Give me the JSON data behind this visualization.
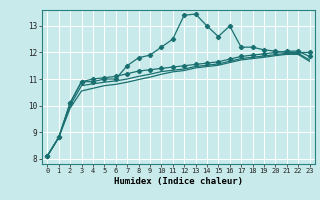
{
  "xlabel": "Humidex (Indice chaleur)",
  "ylabel": "",
  "bg_color": "#c8eaea",
  "grid_color": "#ffffff",
  "line_color": "#1a7070",
  "xlim": [
    -0.5,
    23.5
  ],
  "ylim": [
    7.8,
    13.6
  ],
  "yticks": [
    8,
    9,
    10,
    11,
    12,
    13
  ],
  "xticks": [
    0,
    1,
    2,
    3,
    4,
    5,
    6,
    7,
    8,
    9,
    10,
    11,
    12,
    13,
    14,
    15,
    16,
    17,
    18,
    19,
    20,
    21,
    22,
    23
  ],
  "series1_x": [
    0,
    1,
    2,
    3,
    4,
    5,
    6,
    7,
    8,
    9,
    10,
    11,
    12,
    13,
    14,
    15,
    16,
    17,
    18,
    19,
    20,
    21,
    22,
    23
  ],
  "series1_y": [
    8.1,
    8.8,
    10.1,
    10.9,
    10.9,
    11.0,
    11.0,
    11.5,
    11.8,
    11.9,
    12.2,
    12.5,
    13.4,
    13.45,
    13.0,
    12.6,
    13.0,
    12.2,
    12.2,
    12.1,
    12.05,
    12.0,
    12.0,
    12.0
  ],
  "series2_x": [
    0,
    1,
    2,
    3,
    4,
    5,
    6,
    7,
    8,
    9,
    10,
    11,
    12,
    13,
    14,
    15,
    16,
    17,
    18,
    19,
    20,
    21,
    22,
    23
  ],
  "series2_y": [
    8.1,
    8.8,
    10.1,
    10.9,
    11.0,
    11.05,
    11.1,
    11.2,
    11.3,
    11.35,
    11.4,
    11.45,
    11.5,
    11.55,
    11.6,
    11.65,
    11.75,
    11.85,
    11.9,
    11.95,
    12.0,
    12.05,
    12.05,
    11.85
  ],
  "series3_x": [
    0,
    1,
    2,
    3,
    4,
    5,
    6,
    7,
    8,
    9,
    10,
    11,
    12,
    13,
    14,
    15,
    16,
    17,
    18,
    19,
    20,
    21,
    22,
    23
  ],
  "series3_y": [
    8.1,
    8.8,
    10.0,
    10.75,
    10.82,
    10.88,
    10.93,
    11.0,
    11.1,
    11.18,
    11.28,
    11.33,
    11.38,
    11.47,
    11.52,
    11.57,
    11.67,
    11.77,
    11.82,
    11.87,
    11.92,
    11.97,
    11.97,
    11.72
  ],
  "series4_x": [
    0,
    1,
    2,
    3,
    4,
    5,
    6,
    7,
    8,
    9,
    10,
    11,
    12,
    13,
    14,
    15,
    16,
    17,
    18,
    19,
    20,
    21,
    22,
    23
  ],
  "series4_y": [
    8.1,
    8.8,
    9.9,
    10.55,
    10.65,
    10.75,
    10.8,
    10.88,
    10.98,
    11.07,
    11.18,
    11.27,
    11.32,
    11.42,
    11.47,
    11.52,
    11.62,
    11.72,
    11.77,
    11.82,
    11.88,
    11.93,
    11.93,
    11.67
  ]
}
